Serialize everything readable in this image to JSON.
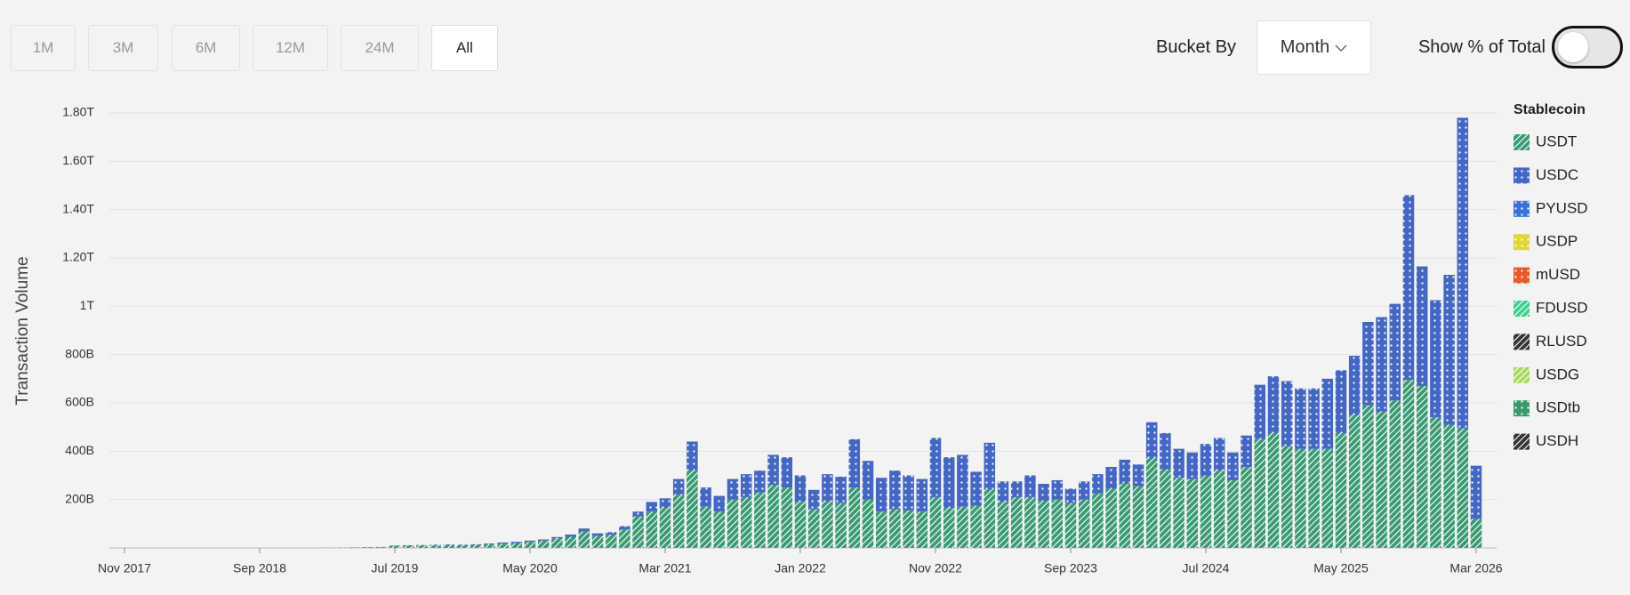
{
  "controls": {
    "ranges": [
      "1M",
      "3M",
      "6M",
      "12M",
      "24M",
      "All"
    ],
    "selected_range": 5,
    "bucket_label": "Bucket By",
    "bucket_value": "Month",
    "toggle_label": "Show % of Total"
  },
  "chart_data": {
    "type": "stacked-bar",
    "y_label": "Transaction Volume",
    "legend_title": "Stablecoin",
    "grid": true,
    "ylim": [
      0,
      1800
    ],
    "yticks": [
      {
        "value": 200,
        "label": "200B"
      },
      {
        "value": 400,
        "label": "400B"
      },
      {
        "value": 600,
        "label": "600B"
      },
      {
        "value": 800,
        "label": "800B"
      },
      {
        "value": 1000,
        "label": "1T"
      },
      {
        "value": 1200,
        "label": "1.20T"
      },
      {
        "value": 1400,
        "label": "1.40T"
      },
      {
        "value": 1600,
        "label": "1.60T"
      },
      {
        "value": 1800,
        "label": "1.80T"
      }
    ],
    "categories": [
      "Nov 2017",
      null,
      null,
      null,
      null,
      null,
      null,
      null,
      null,
      null,
      "Sep 2018",
      null,
      null,
      null,
      null,
      null,
      null,
      null,
      null,
      null,
      "Jul 2019",
      null,
      null,
      null,
      null,
      null,
      null,
      null,
      null,
      null,
      "May 2020",
      null,
      null,
      null,
      null,
      null,
      null,
      null,
      null,
      null,
      "Mar 2021",
      null,
      null,
      null,
      null,
      null,
      null,
      null,
      null,
      null,
      "Jan 2022",
      null,
      null,
      null,
      null,
      null,
      null,
      null,
      null,
      null,
      "Nov 2022",
      null,
      null,
      null,
      null,
      null,
      null,
      null,
      null,
      null,
      "Sep 2023",
      null,
      null,
      null,
      null,
      null,
      null,
      null,
      null,
      null,
      "Jul 2024",
      null,
      null,
      null,
      null,
      null,
      null,
      null,
      null,
      null,
      "May 2025",
      null,
      null,
      null,
      null,
      null,
      null,
      null,
      null,
      null,
      "Mar 2026"
    ],
    "series": [
      {
        "name": "USDT",
        "color": "#3a9a72",
        "pattern": "hatch",
        "values": [
          0,
          0,
          0,
          0,
          0,
          0,
          0,
          0,
          0,
          0,
          0,
          0,
          0,
          0,
          0,
          1,
          1,
          1,
          2,
          3,
          8,
          9,
          10,
          10,
          11,
          11,
          12,
          15,
          18,
          20,
          25,
          30,
          38,
          46,
          68,
          50,
          55,
          76,
          130,
          150,
          165,
          220,
          320,
          170,
          150,
          200,
          210,
          230,
          260,
          250,
          190,
          160,
          190,
          185,
          250,
          200,
          150,
          160,
          155,
          150,
          210,
          165,
          170,
          175,
          240,
          190,
          210,
          210,
          195,
          200,
          185,
          200,
          225,
          245,
          265,
          255,
          370,
          325,
          290,
          285,
          300,
          320,
          280,
          335,
          450,
          475,
          420,
          410,
          410,
          410,
          475,
          550,
          590,
          565,
          610,
          695,
          670,
          540,
          510,
          495,
          120
        ]
      },
      {
        "name": "USDC",
        "color": "#4466c4",
        "pattern": "dots",
        "values": [
          0,
          0,
          0,
          0,
          0,
          0,
          0,
          0,
          0,
          0,
          0,
          0,
          0,
          0,
          0,
          0,
          0,
          1,
          1,
          1,
          2,
          2,
          2,
          3,
          3,
          2,
          3,
          3,
          4,
          5,
          5,
          5,
          7,
          9,
          12,
          10,
          10,
          14,
          20,
          40,
          40,
          65,
          120,
          80,
          65,
          85,
          95,
          90,
          125,
          125,
          110,
          80,
          115,
          110,
          200,
          160,
          140,
          160,
          145,
          135,
          245,
          210,
          215,
          140,
          195,
          85,
          65,
          90,
          70,
          80,
          60,
          75,
          80,
          90,
          100,
          90,
          150,
          150,
          120,
          110,
          130,
          135,
          115,
          130,
          225,
          235,
          270,
          250,
          250,
          290,
          260,
          245,
          345,
          390,
          400,
          765,
          495,
          485,
          620,
          1285,
          220
        ]
      },
      {
        "name": "PYUSD",
        "color": "#3a6fe0",
        "pattern": "dots",
        "values": [
          0,
          0,
          0,
          0,
          0,
          0,
          0,
          0,
          0,
          0,
          0,
          0,
          0,
          0,
          0,
          0,
          0,
          0,
          0,
          0,
          0,
          0,
          0,
          0,
          0,
          0,
          0,
          0,
          0,
          0,
          0,
          0,
          0,
          0,
          0,
          0,
          0,
          0,
          0,
          0,
          0,
          0,
          0,
          0,
          0,
          0,
          0,
          0,
          0,
          0,
          0,
          0,
          0,
          0,
          0,
          0,
          0,
          0,
          0,
          0,
          0,
          0,
          0,
          0,
          0,
          0,
          0,
          0,
          0,
          0,
          0,
          0,
          0,
          0,
          0,
          0,
          0,
          0,
          0,
          0,
          0,
          0,
          0,
          0,
          0,
          0,
          0,
          0,
          0,
          0,
          0,
          0,
          0,
          0,
          0,
          0,
          0,
          0,
          0,
          0,
          0
        ]
      },
      {
        "name": "USDP",
        "color": "#e3d43a",
        "pattern": "dots",
        "values": [
          0,
          0,
          0,
          0,
          0,
          0,
          0,
          0,
          0,
          0,
          0,
          0,
          0,
          0,
          0,
          0,
          0,
          0,
          0,
          0,
          0,
          0,
          0,
          0,
          0,
          0,
          0,
          0,
          0,
          0,
          0,
          0,
          0,
          0,
          0,
          0,
          0,
          0,
          0,
          0,
          0,
          0,
          0,
          0,
          0,
          0,
          0,
          0,
          0,
          0,
          0,
          0,
          0,
          0,
          0,
          0,
          0,
          0,
          0,
          0,
          0,
          0,
          0,
          0,
          0,
          0,
          0,
          0,
          0,
          0,
          0,
          0,
          0,
          0,
          0,
          0,
          0,
          0,
          0,
          0,
          0,
          0,
          0,
          0,
          0,
          0,
          0,
          0,
          0,
          0,
          0,
          0,
          0,
          0,
          0,
          0,
          0,
          0,
          0,
          0,
          0
        ]
      },
      {
        "name": "mUSD",
        "color": "#e85a2a",
        "pattern": "dots",
        "values": [
          0,
          0,
          0,
          0,
          0,
          0,
          0,
          0,
          0,
          0,
          0,
          0,
          0,
          0,
          0,
          0,
          0,
          0,
          0,
          0,
          0,
          0,
          0,
          0,
          0,
          0,
          0,
          0,
          0,
          0,
          0,
          0,
          0,
          0,
          0,
          0,
          0,
          0,
          0,
          0,
          0,
          0,
          0,
          0,
          0,
          0,
          0,
          0,
          0,
          0,
          0,
          0,
          0,
          0,
          0,
          0,
          0,
          0,
          0,
          0,
          0,
          0,
          0,
          0,
          0,
          0,
          0,
          0,
          0,
          0,
          0,
          0,
          0,
          0,
          0,
          0,
          0,
          0,
          0,
          0,
          0,
          0,
          0,
          0,
          0,
          0,
          0,
          0,
          0,
          0,
          0,
          0,
          0,
          0,
          0,
          0,
          0,
          0,
          0,
          0,
          0
        ]
      },
      {
        "name": "FDUSD",
        "color": "#3ecf8e",
        "pattern": "hatch",
        "values": [
          0,
          0,
          0,
          0,
          0,
          0,
          0,
          0,
          0,
          0,
          0,
          0,
          0,
          0,
          0,
          0,
          0,
          0,
          0,
          0,
          0,
          0,
          0,
          0,
          0,
          0,
          0,
          0,
          0,
          0,
          0,
          0,
          0,
          0,
          0,
          0,
          0,
          0,
          0,
          0,
          0,
          0,
          0,
          0,
          0,
          0,
          0,
          0,
          0,
          0,
          0,
          0,
          0,
          0,
          0,
          0,
          0,
          0,
          0,
          0,
          0,
          0,
          0,
          0,
          0,
          0,
          0,
          0,
          0,
          0,
          0,
          0,
          0,
          0,
          0,
          0,
          0,
          0,
          0,
          0,
          0,
          0,
          0,
          0,
          0,
          0,
          0,
          0,
          0,
          0,
          0,
          0,
          0,
          0,
          0,
          0,
          0,
          0,
          0,
          0,
          0
        ]
      },
      {
        "name": "RLUSD",
        "color": "#333333",
        "pattern": "hatch",
        "values": [
          0,
          0,
          0,
          0,
          0,
          0,
          0,
          0,
          0,
          0,
          0,
          0,
          0,
          0,
          0,
          0,
          0,
          0,
          0,
          0,
          0,
          0,
          0,
          0,
          0,
          0,
          0,
          0,
          0,
          0,
          0,
          0,
          0,
          0,
          0,
          0,
          0,
          0,
          0,
          0,
          0,
          0,
          0,
          0,
          0,
          0,
          0,
          0,
          0,
          0,
          0,
          0,
          0,
          0,
          0,
          0,
          0,
          0,
          0,
          0,
          0,
          0,
          0,
          0,
          0,
          0,
          0,
          0,
          0,
          0,
          0,
          0,
          0,
          0,
          0,
          0,
          0,
          0,
          0,
          0,
          0,
          0,
          0,
          0,
          0,
          0,
          0,
          0,
          0,
          0,
          0,
          0,
          0,
          0,
          0,
          0,
          0,
          0,
          0,
          0,
          0
        ]
      },
      {
        "name": "USDG",
        "color": "#a8d860",
        "pattern": "hatch",
        "values": [
          0,
          0,
          0,
          0,
          0,
          0,
          0,
          0,
          0,
          0,
          0,
          0,
          0,
          0,
          0,
          0,
          0,
          0,
          0,
          0,
          0,
          0,
          0,
          0,
          0,
          0,
          0,
          0,
          0,
          0,
          0,
          0,
          0,
          0,
          0,
          0,
          0,
          0,
          0,
          0,
          0,
          0,
          0,
          0,
          0,
          0,
          0,
          0,
          0,
          0,
          0,
          0,
          0,
          0,
          0,
          0,
          0,
          0,
          0,
          0,
          0,
          0,
          0,
          0,
          0,
          0,
          0,
          0,
          0,
          0,
          0,
          0,
          0,
          0,
          0,
          0,
          0,
          0,
          0,
          0,
          0,
          0,
          0,
          0,
          0,
          0,
          0,
          0,
          0,
          0,
          0,
          0,
          0,
          0,
          0,
          0,
          0,
          0,
          0,
          0,
          0
        ]
      },
      {
        "name": "USDtb",
        "color": "#3a9a6a",
        "pattern": "dots",
        "values": [
          0,
          0,
          0,
          0,
          0,
          0,
          0,
          0,
          0,
          0,
          0,
          0,
          0,
          0,
          0,
          0,
          0,
          0,
          0,
          0,
          0,
          0,
          0,
          0,
          0,
          0,
          0,
          0,
          0,
          0,
          0,
          0,
          0,
          0,
          0,
          0,
          0,
          0,
          0,
          0,
          0,
          0,
          0,
          0,
          0,
          0,
          0,
          0,
          0,
          0,
          0,
          0,
          0,
          0,
          0,
          0,
          0,
          0,
          0,
          0,
          0,
          0,
          0,
          0,
          0,
          0,
          0,
          0,
          0,
          0,
          0,
          0,
          0,
          0,
          0,
          0,
          0,
          0,
          0,
          0,
          0,
          0,
          0,
          0,
          0,
          0,
          0,
          0,
          0,
          0,
          0,
          0,
          0,
          0,
          0,
          0,
          0,
          0,
          0,
          0,
          0
        ]
      },
      {
        "name": "USDH",
        "color": "#333333",
        "pattern": "hatch",
        "values": [
          0,
          0,
          0,
          0,
          0,
          0,
          0,
          0,
          0,
          0,
          0,
          0,
          0,
          0,
          0,
          0,
          0,
          0,
          0,
          0,
          0,
          0,
          0,
          0,
          0,
          0,
          0,
          0,
          0,
          0,
          0,
          0,
          0,
          0,
          0,
          0,
          0,
          0,
          0,
          0,
          0,
          0,
          0,
          0,
          0,
          0,
          0,
          0,
          0,
          0,
          0,
          0,
          0,
          0,
          0,
          0,
          0,
          0,
          0,
          0,
          0,
          0,
          0,
          0,
          0,
          0,
          0,
          0,
          0,
          0,
          0,
          0,
          0,
          0,
          0,
          0,
          0,
          0,
          0,
          0,
          0,
          0,
          0,
          0,
          0,
          0,
          0,
          0,
          0,
          0,
          0,
          0,
          0,
          0,
          0,
          0,
          0,
          0,
          0,
          0,
          0
        ]
      }
    ]
  }
}
